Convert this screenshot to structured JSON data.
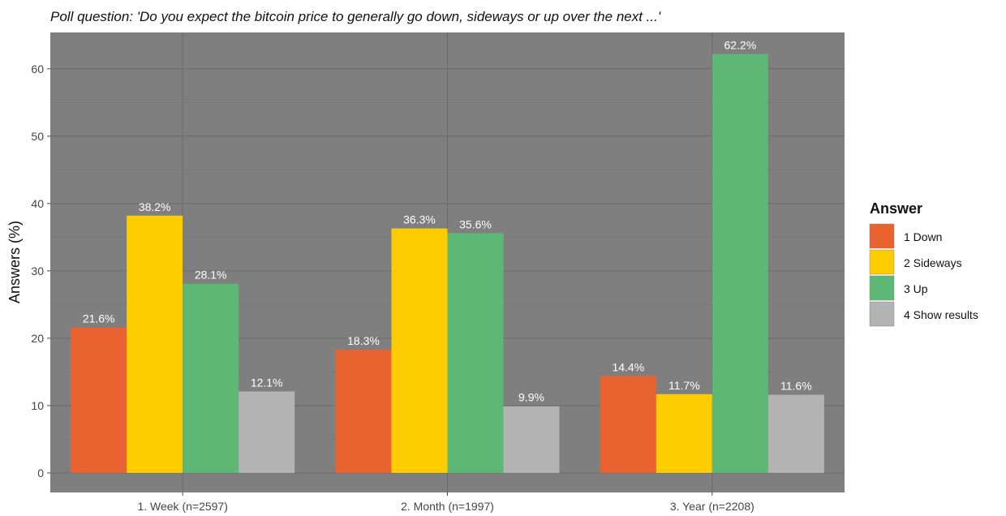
{
  "chart_data": {
    "type": "bar",
    "subtitle": "Poll question: 'Do you expect the bitcoin price to generally go down, sideways or up over the next ...'",
    "xlabel": "",
    "ylabel": "Answers (%)",
    "ylim": [
      -2.9,
      65.4
    ],
    "yticks": [
      0,
      10,
      20,
      30,
      40,
      50,
      60
    ],
    "grid": true,
    "categories": [
      "1. Week (n=2597)",
      "2. Month (n=1997)",
      "3. Year (n=2208)"
    ],
    "series": [
      {
        "name": "1 Down",
        "color": "#E8632F",
        "values": [
          21.6,
          18.3,
          14.4
        ],
        "labels": [
          "21.6%",
          "18.3%",
          "14.4%"
        ]
      },
      {
        "name": "2 Sideways",
        "color": "#FFCC00",
        "values": [
          38.2,
          36.3,
          11.7
        ],
        "labels": [
          "38.2%",
          "36.3%",
          "11.7%"
        ]
      },
      {
        "name": "3 Up",
        "color": "#5CB874",
        "values": [
          28.1,
          35.6,
          62.2
        ],
        "labels": [
          "28.1%",
          "35.6%",
          "62.2%"
        ]
      },
      {
        "name": "4 Show results",
        "color": "#B3B3B3",
        "values": [
          12.1,
          9.9,
          11.6
        ],
        "labels": [
          "12.1%",
          "9.9%",
          "11.6%"
        ]
      }
    ],
    "legend": {
      "title": "Answer",
      "position": "right"
    }
  }
}
